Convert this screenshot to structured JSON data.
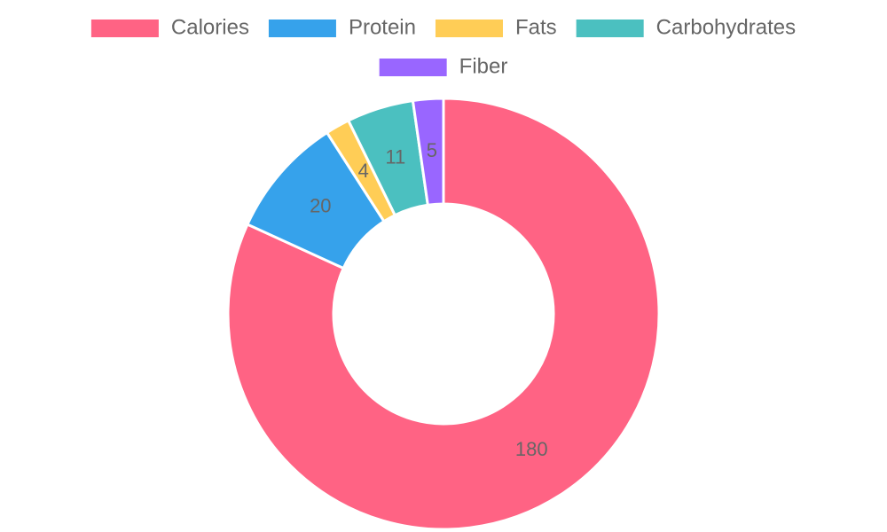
{
  "chart_data": {
    "type": "doughnut",
    "categories": [
      "Calories",
      "Protein",
      "Fats",
      "Carbohydrates",
      "Fiber"
    ],
    "values": [
      180,
      20,
      4,
      11,
      5
    ],
    "colors": [
      "#ff6384",
      "#36a2eb",
      "#ffcd56",
      "#4bc0c0",
      "#9966ff"
    ],
    "data_labels": [
      "180",
      "20",
      "4",
      "11",
      "5"
    ],
    "legend_position": "top",
    "title": ""
  }
}
